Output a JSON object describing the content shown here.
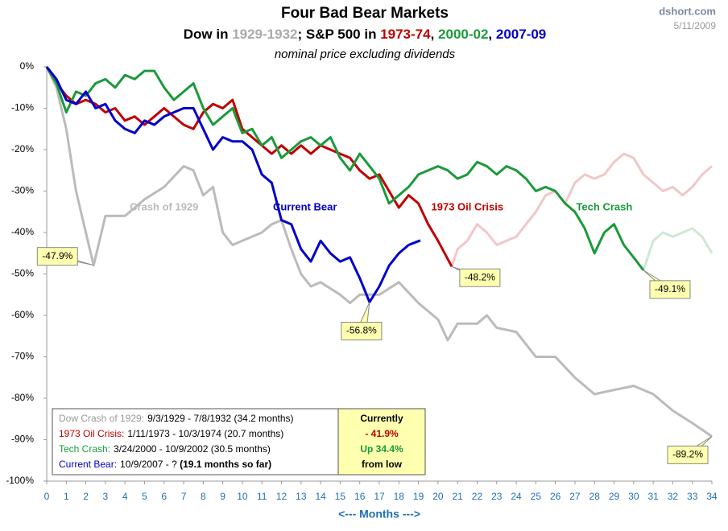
{
  "chart_data": {
    "type": "line",
    "title": "Four Bad Bear Markets",
    "subtitle": [
      {
        "text": "Dow in ",
        "color": "#000000"
      },
      {
        "text": "1929-1932",
        "color": "#aaaaaa"
      },
      {
        "text": "; S&P 500 in ",
        "color": "#000000"
      },
      {
        "text": "1973-74",
        "color": "#c00000"
      },
      {
        "text": ", ",
        "color": "#000000"
      },
      {
        "text": "2000-02",
        "color": "#1a9a3a"
      },
      {
        "text": ", ",
        "color": "#000000"
      },
      {
        "text": "2007-09",
        "color": "#0000cc"
      }
    ],
    "note": "nominal price excluding dividends",
    "source": "dshort.com",
    "date": "5/11/2009",
    "x_label": "<---  Months  --->",
    "xlim": [
      0,
      34
    ],
    "xticks": [
      0,
      1,
      2,
      3,
      4,
      5,
      6,
      7,
      8,
      9,
      10,
      11,
      12,
      13,
      14,
      15,
      16,
      17,
      18,
      19,
      20,
      21,
      22,
      23,
      24,
      25,
      26,
      27,
      28,
      29,
      30,
      31,
      32,
      33,
      34
    ],
    "ylim": [
      -100,
      0
    ],
    "yticks": [
      {
        "value": 0,
        "label": "0%"
      },
      {
        "value": -10,
        "label": "-10%"
      },
      {
        "value": -20,
        "label": "-20%"
      },
      {
        "value": -30,
        "label": "-30%"
      },
      {
        "value": -40,
        "label": "-40%"
      },
      {
        "value": -50,
        "label": "-50%"
      },
      {
        "value": -60,
        "label": "-60%"
      },
      {
        "value": -70,
        "label": "-70%"
      },
      {
        "value": -80,
        "label": "-80%"
      },
      {
        "value": -90,
        "label": "-90%"
      },
      {
        "value": -100,
        "label": "-100%"
      }
    ],
    "grid": false,
    "series": [
      {
        "name": "Crash of 1929",
        "color": "#bbbbbb",
        "label_at": [
          6,
          -34
        ],
        "x": [
          0,
          0.5,
          1,
          1.5,
          2,
          2.4,
          3,
          4,
          5,
          6,
          7,
          7.5,
          8,
          8.5,
          9,
          9.5,
          10,
          11,
          11.5,
          12,
          12.5,
          13,
          13.5,
          14,
          15,
          15.5,
          16,
          17,
          18,
          19,
          20,
          20.5,
          21,
          22,
          22.5,
          23,
          24,
          25,
          26,
          27,
          28,
          29,
          30,
          31,
          32,
          33,
          34
        ],
        "values": [
          0,
          -5,
          -15,
          -30,
          -40,
          -47.9,
          -36,
          -36,
          -32,
          -29,
          -24,
          -25,
          -31,
          -29,
          -40,
          -43,
          -42,
          -40,
          -38,
          -37,
          -44,
          -50,
          -53,
          -52,
          -55,
          -57,
          -55,
          -55,
          -52,
          -57,
          -61,
          -66,
          -62,
          -62,
          -60,
          -63,
          -64,
          -70,
          -70,
          -75,
          -79,
          -78,
          -77,
          -79,
          -83,
          -86,
          -89.2
        ]
      },
      {
        "name": "1973 Oil Crisis",
        "color": "#c00000",
        "solid_until": 20.7,
        "label_at": [
          21.5,
          -34
        ],
        "x": [
          0,
          0.5,
          1,
          1.5,
          2,
          2.5,
          3,
          3.5,
          4,
          4.5,
          5,
          5.5,
          6,
          6.5,
          7,
          7.5,
          8,
          8.5,
          9,
          9.5,
          10,
          10.5,
          11,
          11.5,
          12,
          12.5,
          13,
          13.5,
          14,
          14.5,
          15,
          15.5,
          16,
          16.5,
          17,
          17.5,
          18,
          18.5,
          19,
          19.5,
          20,
          20.7,
          21,
          21.5,
          22,
          22.5,
          23,
          23.5,
          24,
          24.5,
          25,
          25.5,
          26,
          26.5,
          27,
          27.5,
          28,
          28.5,
          29,
          29.5,
          30,
          30.5,
          31,
          31.5,
          32,
          32.5,
          33,
          33.5,
          34
        ],
        "values": [
          0,
          -4,
          -7,
          -9,
          -8,
          -9,
          -11,
          -10,
          -13,
          -12,
          -14,
          -12,
          -10,
          -12,
          -14,
          -15,
          -11,
          -9,
          -10,
          -8,
          -15,
          -17,
          -19,
          -21,
          -19,
          -21,
          -19,
          -21,
          -19,
          -20,
          -21,
          -22,
          -25,
          -27,
          -26,
          -30,
          -34,
          -31,
          -33,
          -38,
          -42,
          -48.2,
          -44,
          -42,
          -38,
          -40,
          -43,
          -42,
          -41,
          -38,
          -35,
          -31,
          -30,
          -33,
          -28,
          -26,
          -27,
          -26,
          -23,
          -21,
          -22,
          -26,
          -28,
          -30,
          -29,
          -31,
          -29,
          -26,
          -24
        ]
      },
      {
        "name": "Tech Crash",
        "color": "#1a9a3a",
        "solid_until": 30.5,
        "label_at": [
          28.5,
          -34
        ],
        "x": [
          0,
          0.5,
          1,
          1.5,
          2,
          2.5,
          3,
          3.5,
          4,
          4.5,
          5,
          5.5,
          6,
          6.5,
          7,
          7.5,
          8,
          8.5,
          9,
          9.5,
          10,
          10.5,
          11,
          11.5,
          12,
          12.5,
          13,
          13.5,
          14,
          14.5,
          15,
          15.5,
          16,
          16.5,
          17,
          17.5,
          18,
          18.5,
          19,
          19.5,
          20,
          20.5,
          21,
          21.5,
          22,
          22.5,
          23,
          23.5,
          24,
          24.5,
          25,
          25.5,
          26,
          26.5,
          27,
          27.5,
          28,
          28.5,
          29,
          29.5,
          30,
          30.5,
          31,
          31.5,
          32,
          32.5,
          33,
          33.5,
          34
        ],
        "values": [
          0,
          -4,
          -11,
          -6,
          -7,
          -4,
          -3,
          -5,
          -2,
          -3,
          -1,
          -1,
          -5,
          -8,
          -6,
          -4,
          -10,
          -14,
          -12,
          -10,
          -16,
          -15,
          -19,
          -17,
          -22,
          -20,
          -18,
          -17,
          -19,
          -17,
          -22,
          -25,
          -21,
          -24,
          -27,
          -33,
          -31,
          -29,
          -26,
          -25,
          -24,
          -25,
          -27,
          -26,
          -23,
          -24,
          -26,
          -24,
          -25,
          -27,
          -30,
          -29,
          -30,
          -33,
          -35,
          -39,
          -45,
          -40,
          -38,
          -43,
          -46,
          -49.1,
          -42,
          -40,
          -41,
          -40,
          -39,
          -41,
          -45
        ]
      },
      {
        "name": "Current Bear",
        "color": "#0000cc",
        "label_at": [
          13.2,
          -34
        ],
        "x": [
          0,
          0.5,
          1,
          1.5,
          2,
          2.5,
          3,
          3.5,
          4,
          4.5,
          5,
          5.5,
          6,
          6.5,
          7,
          7.5,
          8,
          8.5,
          9,
          9.5,
          10,
          10.5,
          11,
          11.5,
          12,
          12.5,
          13,
          13.5,
          14,
          14.5,
          15,
          15.5,
          16,
          16.5,
          17,
          17.5,
          18,
          18.5,
          19.1
        ],
        "values": [
          0,
          -3,
          -8,
          -9,
          -6,
          -10,
          -9,
          -13,
          -15,
          -16,
          -13,
          -14,
          -12,
          -11,
          -10,
          -10,
          -15,
          -20,
          -17,
          -18,
          -18,
          -20,
          -26,
          -28,
          -37,
          -38,
          -44,
          -47,
          -42,
          -45,
          -47,
          -46,
          -51,
          -56.8,
          -53,
          -48,
          -45,
          -43,
          -41.9
        ]
      }
    ],
    "callouts": [
      {
        "text": "-47.9%",
        "x": 2.4,
        "value": -47.9
      },
      {
        "text": "-56.8%",
        "x": 16.5,
        "value": -56.8
      },
      {
        "text": "-48.2%",
        "x": 20.7,
        "value": -48.2
      },
      {
        "text": "-49.1%",
        "x": 30.5,
        "value": -49.1
      },
      {
        "text": "-89.2%",
        "x": 34,
        "value": -89.2
      }
    ],
    "info_box": [
      {
        "label": "Dow Crash of 1929:",
        "color": "#999999",
        "text": "9/3/1929  - 7/8/1932  (34.2 months)"
      },
      {
        "label": "1973 Oil Crisis:",
        "color": "#c00000",
        "text": "1/11/1973  - 10/3/1974  (20.7 months)"
      },
      {
        "label": "Tech Crash:",
        "color": "#1a9a3a",
        "text": "3/24/2000  - 10/9/2002  (30.5 months)"
      },
      {
        "label": "Current Bear:",
        "color": "#0000cc",
        "text": "10/9/2007  - ? ",
        "bold": "(19.1 months so far)"
      }
    ],
    "currently_box": [
      {
        "text": "Currently",
        "color": "#000000"
      },
      {
        "text": "- 41.9%",
        "color": "#c00000"
      },
      {
        "text": "Up 34.4%",
        "color": "#1a9a3a"
      },
      {
        "text": "from low",
        "color": "#000000"
      }
    ]
  }
}
